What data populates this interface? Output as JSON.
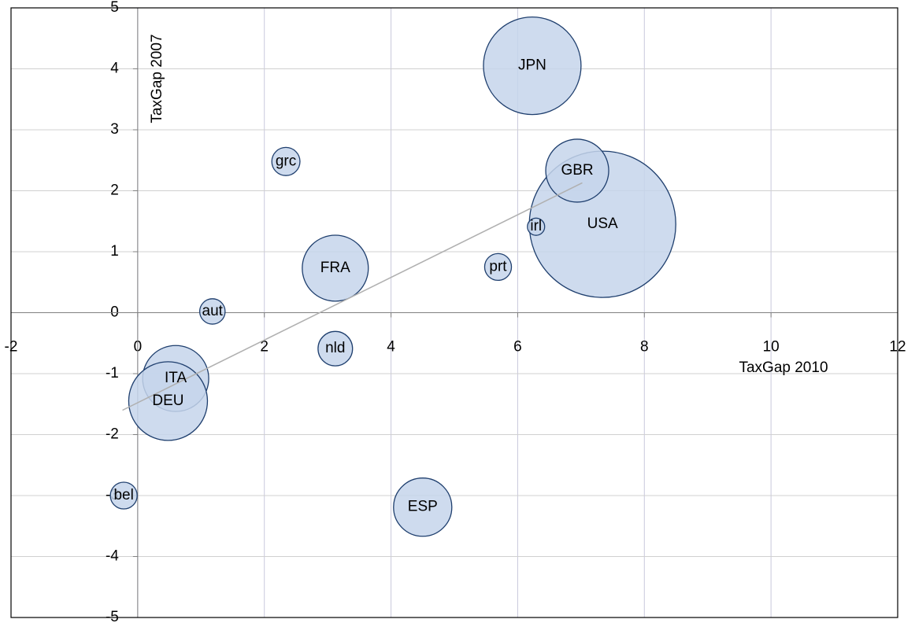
{
  "chart_data": {
    "type": "bubble",
    "x_label": "TaxGap 2010",
    "y_label": "TaxGap 2007",
    "labels": [
      "JPN",
      "USA",
      "GBR",
      "irl",
      "prt",
      "grc",
      "FRA",
      "aut",
      "nld",
      "ITA",
      "DEU",
      "bel",
      "ESP"
    ],
    "x": [
      6.23,
      7.34,
      6.94,
      6.29,
      5.69,
      2.34,
      3.12,
      1.18,
      3.12,
      0.6,
      0.48,
      -0.22,
      4.5
    ],
    "y": [
      4.05,
      1.45,
      2.33,
      1.41,
      0.75,
      2.48,
      0.73,
      0.02,
      -0.59,
      -1.08,
      -1.45,
      -3.0,
      -3.19
    ],
    "sizes": [
      38.4,
      86.5,
      16,
      1.2,
      2.9,
      3.2,
      17.6,
      2.6,
      4.8,
      17.6,
      25,
      2.9,
      13.7
    ],
    "color": "#c6d5eb",
    "edge_color": "#1f3f6e",
    "trendline": {
      "x": [
        -0.24,
        7.02
      ],
      "y": [
        -1.6,
        2.13
      ],
      "color": "#b0b0b0"
    },
    "xlim": [
      -2,
      12
    ],
    "xticks": [
      -2,
      0,
      2,
      4,
      6,
      8,
      10,
      12
    ],
    "ylim": [
      -5,
      5
    ],
    "yticks": [
      -5,
      -4,
      -3,
      -2,
      -1,
      0,
      1,
      2,
      3,
      4,
      5
    ],
    "grid": true
  }
}
